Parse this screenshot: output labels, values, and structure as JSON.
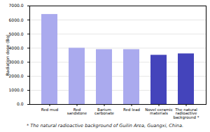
{
  "chart_data": {
    "type": "bar",
    "categories": [
      "Red mud",
      "Red\nsandstone",
      "Barium\ncarbonate",
      "Red lead",
      "Novel ceramic\nmaterials",
      "The natural\nradioactive\nbackground *"
    ],
    "values": [
      6400,
      4000,
      3900,
      3900,
      3500,
      3600
    ],
    "colors": [
      "#aaaaee",
      "#aaaaee",
      "#aaaaee",
      "#aaaaee",
      "#4444bb",
      "#4444bb"
    ],
    "ylabel": "Radiation dose (Bq)",
    "ylim": [
      0,
      7000
    ],
    "yticks": [
      {
        "value": 0,
        "label": "0.0"
      },
      {
        "value": 1000,
        "label": "1000.0"
      },
      {
        "value": 2000,
        "label": "2000.0"
      },
      {
        "value": 3000,
        "label": "3000.0"
      },
      {
        "value": 4000,
        "label": "4000.0"
      },
      {
        "value": 5000,
        "label": "5000.0"
      },
      {
        "value": 6000,
        "label": "6000.0"
      },
      {
        "value": 7000,
        "label": "7000.0"
      }
    ],
    "grid": true,
    "footnote": "* The natural radioactive background of Guilin Area, Guangxi, China."
  }
}
